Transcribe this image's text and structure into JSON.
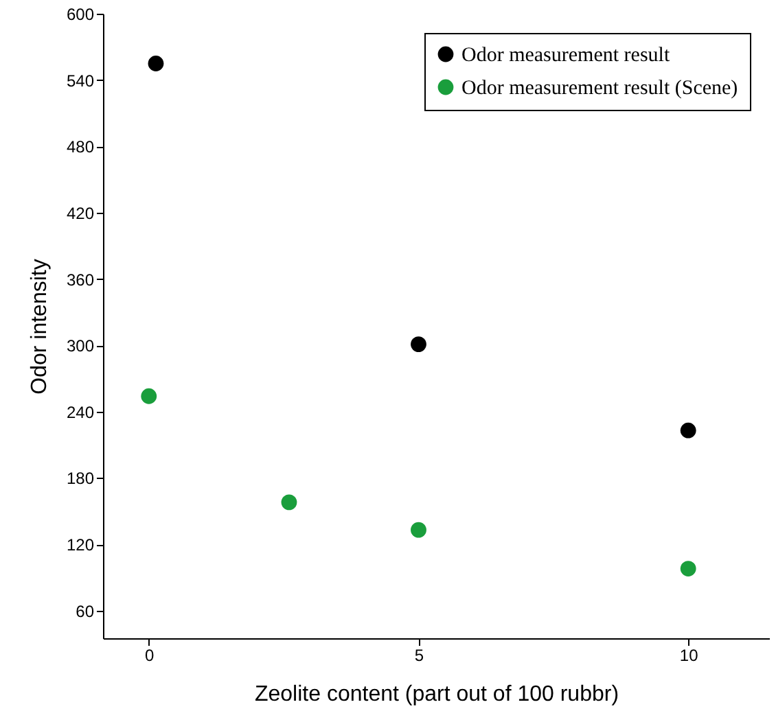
{
  "chart_data": {
    "type": "scatter",
    "xlabel": "Zeolite content (part out of 100 rubbr)",
    "ylabel": "Odor intensity",
    "xlim": [
      -0.85,
      11.5
    ],
    "xticks": [
      0,
      5,
      10
    ],
    "ylim": [
      35,
      600
    ],
    "yticks": [
      60,
      120,
      180,
      240,
      300,
      360,
      420,
      480,
      540,
      600
    ],
    "series": [
      {
        "name": "Odor measurement result",
        "color": "#000000",
        "x": [
          0.13,
          5,
          10
        ],
        "values": [
          555,
          301,
          223
        ]
      },
      {
        "name": "Odor measurement result (Scene)",
        "color": "#1a9e3c",
        "x": [
          0,
          2.6,
          5,
          10
        ],
        "values": [
          254,
          158,
          133,
          98
        ]
      }
    ],
    "legend": "top right",
    "marker": "circle",
    "grid": false
  }
}
